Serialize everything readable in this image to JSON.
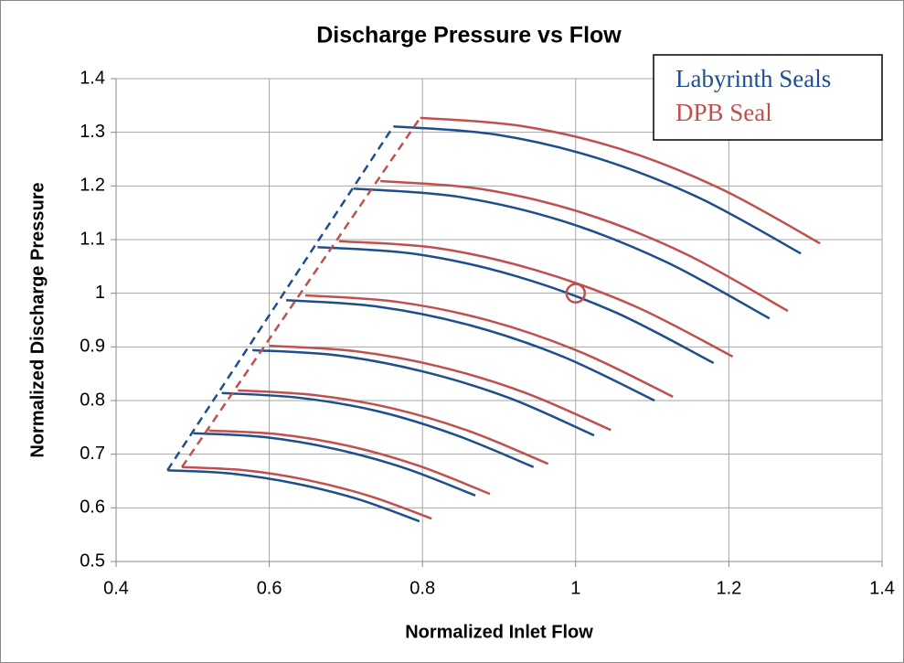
{
  "chart_data": {
    "type": "line",
    "title": "Discharge Pressure vs Flow",
    "xlabel": "Normalized Inlet Flow",
    "ylabel": "Normalized Discharge Pressure",
    "xlim": [
      0.4,
      1.4
    ],
    "ylim": [
      0.5,
      1.4
    ],
    "xticks": [
      0.4,
      0.6,
      0.8,
      1,
      1.2,
      1.4
    ],
    "yticks": [
      0.5,
      0.6,
      0.7,
      0.8,
      0.9,
      1,
      1.1,
      1.2,
      1.3,
      1.4
    ],
    "grid": true,
    "legend": "upper right",
    "series": [
      {
        "name": "Labyrinth Seals",
        "color": "#1f4e8c",
        "curves": [
          {
            "x": [
              0.467,
              0.549,
              0.632,
              0.714,
              0.796
            ],
            "y": [
              0.67,
              0.664,
              0.646,
              0.617,
              0.575
            ]
          },
          {
            "x": [
              0.501,
              0.593,
              0.685,
              0.777,
              0.869
            ],
            "y": [
              0.739,
              0.732,
              0.71,
              0.674,
              0.623
            ]
          },
          {
            "x": [
              0.538,
              0.64,
              0.742,
              0.843,
              0.945
            ],
            "y": [
              0.814,
              0.805,
              0.78,
              0.736,
              0.676
            ]
          },
          {
            "x": [
              0.578,
              0.69,
              0.801,
              0.913,
              1.024
            ],
            "y": [
              0.894,
              0.884,
              0.854,
              0.805,
              0.735
            ]
          },
          {
            "x": [
              0.622,
              0.742,
              0.863,
              0.983,
              1.103
            ],
            "y": [
              0.987,
              0.975,
              0.94,
              0.882,
              0.8
            ]
          },
          {
            "x": [
              0.663,
              0.792,
              0.922,
              1.051,
              1.18
            ],
            "y": [
              1.086,
              1.073,
              1.032,
              0.965,
              0.87
            ]
          },
          {
            "x": [
              0.71,
              0.846,
              0.982,
              1.117,
              1.253
            ],
            "y": [
              1.195,
              1.18,
              1.135,
              1.059,
              0.953
            ]
          },
          {
            "x": [
              0.762,
              0.895,
              1.028,
              1.161,
              1.294
            ],
            "y": [
              1.311,
              1.296,
              1.252,
              1.178,
              1.074
            ]
          }
        ],
        "surge": {
          "x": [
            0.467,
            0.762
          ],
          "y": [
            0.67,
            1.311
          ]
        }
      },
      {
        "name": "DPB Seal",
        "color": "#c0504d",
        "curves": [
          {
            "x": [
              0.486,
              0.568,
              0.649,
              0.731,
              0.812
            ],
            "y": [
              0.676,
              0.67,
              0.652,
              0.622,
              0.58
            ]
          },
          {
            "x": [
              0.521,
              0.613,
              0.705,
              0.796,
              0.888
            ],
            "y": [
              0.744,
              0.737,
              0.715,
              0.678,
              0.626
            ]
          },
          {
            "x": [
              0.559,
              0.66,
              0.762,
              0.863,
              0.964
            ],
            "y": [
              0.819,
              0.81,
              0.785,
              0.742,
              0.682
            ]
          },
          {
            "x": [
              0.6,
              0.712,
              0.823,
              0.935,
              1.046
            ],
            "y": [
              0.902,
              0.892,
              0.863,
              0.814,
              0.745
            ]
          },
          {
            "x": [
              0.647,
              0.767,
              0.887,
              1.007,
              1.127
            ],
            "y": [
              0.996,
              0.984,
              0.949,
              0.89,
              0.807
            ]
          },
          {
            "x": [
              0.691,
              0.82,
              0.948,
              1.077,
              1.205
            ],
            "y": [
              1.097,
              1.084,
              1.043,
              0.976,
              0.882
            ]
          },
          {
            "x": [
              0.745,
              0.878,
              1.011,
              1.144,
              1.277
            ],
            "y": [
              1.209,
              1.194,
              1.149,
              1.073,
              0.967
            ]
          },
          {
            "x": [
              0.797,
              0.928,
              1.058,
              1.189,
              1.319
            ],
            "y": [
              1.327,
              1.312,
              1.269,
              1.195,
              1.093
            ]
          }
        ],
        "surge": {
          "x": [
            0.486,
            0.797
          ],
          "y": [
            0.676,
            1.327
          ]
        }
      }
    ],
    "highlight": {
      "x": 1,
      "y": 1,
      "color": "#c0504d"
    }
  }
}
